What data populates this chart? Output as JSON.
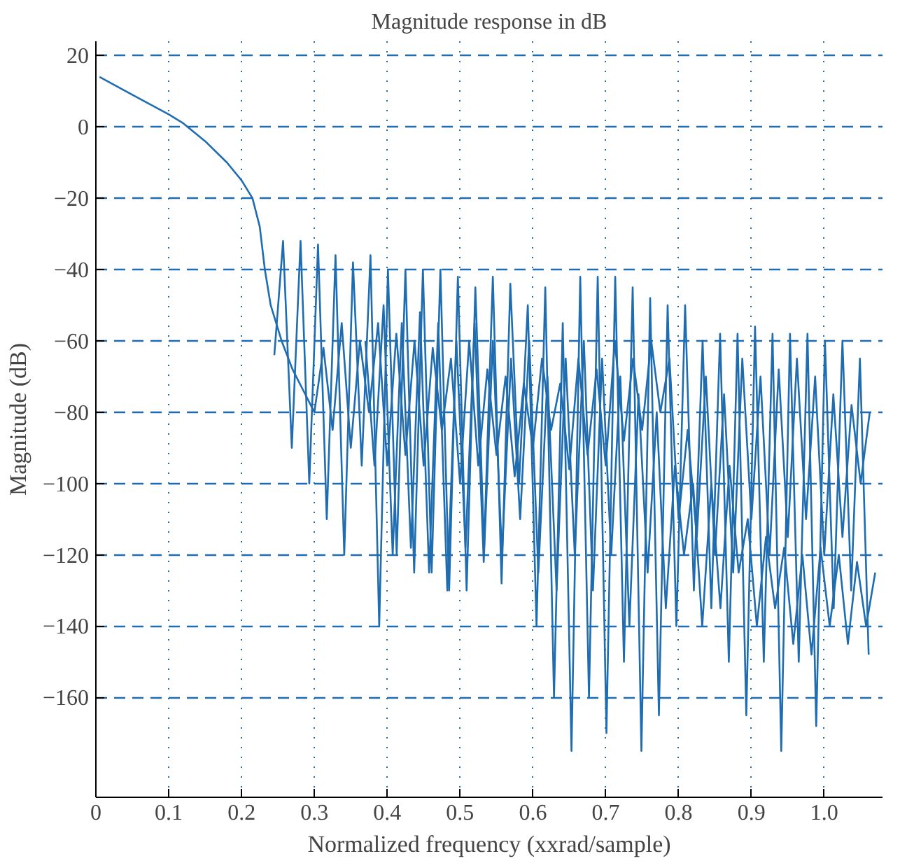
{
  "chart_data": {
    "type": "line",
    "title": "Magnitude response in dB",
    "xlabel": "Normalized frequency (xxrad/sample)",
    "ylabel": "Magnitude (dB)",
    "xlim": [
      0,
      1.08
    ],
    "ylim": [
      -188,
      24
    ],
    "xticks": [
      0,
      0.1,
      0.2,
      0.3,
      0.4,
      0.5,
      0.6,
      0.7,
      0.8,
      0.9,
      {
        "value": 1.0,
        "label": "1.0"
      }
    ],
    "yticks": [
      -160,
      -140,
      -120,
      -100,
      -80,
      -60,
      -40,
      -20,
      0,
      20
    ],
    "grid": true,
    "marker": "none",
    "line_style": "solid",
    "series": [
      {
        "color": "#1f6db0",
        "x": [
          0.005,
          0.05,
          0.1,
          0.12,
          0.15,
          0.18,
          0.2,
          0.215,
          0.225,
          0.232,
          0.24,
          0.255,
          0.27,
          0.285,
          0.3,
          0.3125,
          0.325,
          0.3375,
          0.35,
          0.3625,
          0.375,
          0.3875,
          0.4,
          0.4125,
          0.425,
          0.4375,
          0.45,
          0.4625,
          0.475,
          0.4875,
          0.5,
          0.5125,
          0.525,
          0.5375,
          0.55,
          0.5625,
          0.575,
          0.5875,
          0.6,
          0.6125,
          0.625,
          0.6375,
          0.65,
          0.6625,
          0.675,
          0.6875,
          0.7,
          0.7125,
          0.725,
          0.7375,
          0.75,
          0.7625,
          0.775,
          0.7875,
          0.8,
          0.8125,
          0.825,
          0.8375,
          0.85,
          0.8625,
          0.875,
          0.8875,
          0.9,
          0.9125,
          0.925,
          0.9375,
          0.95,
          0.9625,
          0.975,
          0.9875,
          1.0,
          1.0125,
          1.025,
          1.0375,
          1.05,
          1.0625
        ],
        "values": [
          14,
          9,
          3.5,
          1,
          -4,
          -10,
          -15,
          -20,
          -28,
          -40,
          -50,
          -60,
          -68,
          -74,
          -80,
          -62,
          -85,
          -55,
          -90,
          -60,
          -80,
          -55,
          -95,
          -58,
          -92,
          -60,
          -95,
          -62,
          -85,
          -65,
          -100,
          -60,
          -95,
          -68,
          -92,
          -70,
          -98,
          -72,
          -90,
          -65,
          -85,
          -72,
          -96,
          -65,
          -92,
          -68,
          -95,
          -60,
          -88,
          -65,
          -85,
          -60,
          -80,
          -65,
          -110,
          -85,
          -115,
          -70,
          -120,
          -75,
          -125,
          -65,
          -110,
          -70,
          -120,
          -68,
          -115,
          -65,
          -110,
          -70,
          -120,
          -75,
          -115,
          -78,
          -100,
          -80
        ]
      },
      {
        "color": "#1f6db0",
        "x": [
          0.245,
          0.257,
          0.269,
          0.281,
          0.293,
          0.305,
          0.317,
          0.329,
          0.341,
          0.353,
          0.365,
          0.377,
          0.389,
          0.401,
          0.413,
          0.425,
          0.437,
          0.449,
          0.461,
          0.473,
          0.485,
          0.497,
          0.509,
          0.521,
          0.533,
          0.545,
          0.557,
          0.569,
          0.581,
          0.593,
          0.605,
          0.617,
          0.629,
          0.641,
          0.653,
          0.665,
          0.677,
          0.689,
          0.701,
          0.713,
          0.725,
          0.737,
          0.749,
          0.761,
          0.773,
          0.785,
          0.797,
          0.809,
          0.821,
          0.833,
          0.845,
          0.857,
          0.869,
          0.881,
          0.893,
          0.905,
          0.917,
          0.929,
          0.941,
          0.953,
          0.965,
          0.977,
          0.989,
          1.001,
          1.013,
          1.025,
          1.037,
          1.049,
          1.061
        ],
        "values": [
          -64,
          -32,
          -90,
          -32,
          -100,
          -33,
          -110,
          -36,
          -120,
          -38,
          -95,
          -36,
          -140,
          -40,
          -120,
          -40,
          -125,
          -40,
          -125,
          -40,
          -130,
          -42,
          -130,
          -45,
          -118,
          -42,
          -128,
          -44,
          -100,
          -50,
          -140,
          -45,
          -160,
          -55,
          -175,
          -42,
          -160,
          -42,
          -170,
          -42,
          -150,
          -45,
          -175,
          -48,
          -165,
          -50,
          -140,
          -50,
          -130,
          -60,
          -135,
          -58,
          -150,
          -58,
          -165,
          -56,
          -150,
          -58,
          -175,
          -58,
          -150,
          -58,
          -168,
          -60,
          -135,
          -60,
          -130,
          -65,
          -148
        ]
      },
      {
        "color": "#1f6db0",
        "x": [
          0.37,
          0.3825,
          0.395,
          0.4075,
          0.42,
          0.4325,
          0.445,
          0.4575,
          0.47,
          0.4825,
          0.495,
          0.5075,
          0.52,
          0.5325,
          0.545,
          0.5575,
          0.57,
          0.5825,
          0.595,
          0.6075,
          0.62,
          0.6325,
          0.645,
          0.6575,
          0.67,
          0.6825,
          0.695,
          0.7075,
          0.72,
          0.7325,
          0.745,
          0.7575,
          0.77,
          0.7825,
          0.795,
          0.8075,
          0.82,
          0.8325,
          0.845,
          0.8575,
          0.87,
          0.8825,
          0.895,
          0.9075,
          0.92,
          0.9325,
          0.945,
          0.9575,
          0.97,
          0.9825,
          0.995,
          1.0075,
          1.02,
          1.0325,
          1.045,
          1.0575,
          1.07
        ],
        "values": [
          -60,
          -95,
          -50,
          -120,
          -55,
          -118,
          -52,
          -125,
          -55,
          -130,
          -60,
          -118,
          -55,
          -122,
          -60,
          -120,
          -65,
          -110,
          -60,
          -125,
          -70,
          -130,
          -65,
          -120,
          -60,
          -130,
          -65,
          -120,
          -70,
          -140,
          -75,
          -125,
          -80,
          -135,
          -95,
          -120,
          -100,
          -140,
          -100,
          -135,
          -95,
          -125,
          -110,
          -140,
          -115,
          -135,
          -118,
          -145,
          -120,
          -148,
          -118,
          -140,
          -120,
          -145,
          -122,
          -140,
          -125
        ]
      }
    ]
  }
}
